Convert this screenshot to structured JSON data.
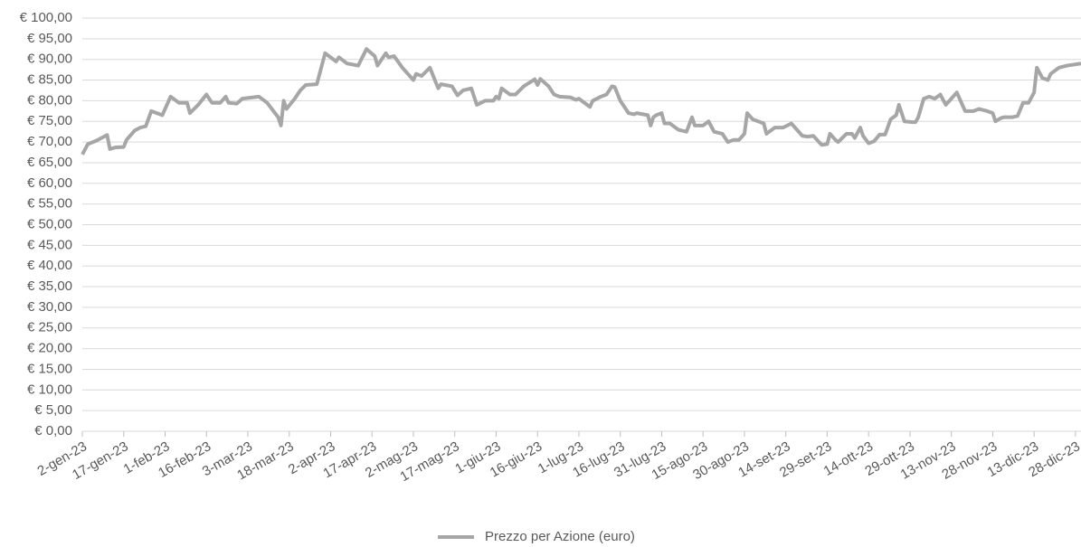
{
  "chart_data": {
    "type": "line",
    "x": [
      "2023-01-02",
      "2023-01-04",
      "2023-01-07",
      "2023-01-09",
      "2023-01-11",
      "2023-01-12",
      "2023-01-14",
      "2023-01-17",
      "2023-01-18",
      "2023-01-21",
      "2023-01-23",
      "2023-01-25",
      "2023-01-27",
      "2023-01-31",
      "2023-02-03",
      "2023-02-06",
      "2023-02-09",
      "2023-02-10",
      "2023-02-13",
      "2023-02-16",
      "2023-02-18",
      "2023-02-21",
      "2023-02-23",
      "2023-02-24",
      "2023-02-27",
      "2023-03-01",
      "2023-03-07",
      "2023-03-10",
      "2023-03-14",
      "2023-03-15",
      "2023-03-16",
      "2023-03-17",
      "2023-03-20",
      "2023-03-22",
      "2023-03-24",
      "2023-03-28",
      "2023-03-31",
      "2023-04-02",
      "2023-04-04",
      "2023-04-05",
      "2023-04-08",
      "2023-04-12",
      "2023-04-15",
      "2023-04-18",
      "2023-04-19",
      "2023-04-22",
      "2023-04-23",
      "2023-04-25",
      "2023-04-28",
      "2023-05-02",
      "2023-05-03",
      "2023-05-05",
      "2023-05-08",
      "2023-05-11",
      "2023-05-12",
      "2023-05-16",
      "2023-05-18",
      "2023-05-20",
      "2023-05-23",
      "2023-05-25",
      "2023-05-28",
      "2023-05-31",
      "2023-06-01",
      "2023-06-02",
      "2023-06-03",
      "2023-06-06",
      "2023-06-08",
      "2023-06-11",
      "2023-06-15",
      "2023-06-16",
      "2023-06-17",
      "2023-06-20",
      "2023-06-22",
      "2023-06-24",
      "2023-06-28",
      "2023-06-30",
      "2023-07-01",
      "2023-07-05",
      "2023-07-06",
      "2023-07-09",
      "2023-07-11",
      "2023-07-13",
      "2023-07-14",
      "2023-07-16",
      "2023-07-19",
      "2023-07-21",
      "2023-07-22",
      "2023-07-26",
      "2023-07-27",
      "2023-07-28",
      "2023-07-29",
      "2023-07-31",
      "2023-08-01",
      "2023-08-03",
      "2023-08-06",
      "2023-08-09",
      "2023-08-11",
      "2023-08-12",
      "2023-08-15",
      "2023-08-17",
      "2023-08-19",
      "2023-08-22",
      "2023-08-24",
      "2023-08-26",
      "2023-08-28",
      "2023-08-30",
      "2023-08-31",
      "2023-09-02",
      "2023-09-06",
      "2023-09-07",
      "2023-09-10",
      "2023-09-13",
      "2023-09-16",
      "2023-09-20",
      "2023-09-22",
      "2023-09-24",
      "2023-09-26",
      "2023-09-27",
      "2023-09-29",
      "2023-09-30",
      "2023-10-02",
      "2023-10-03",
      "2023-10-06",
      "2023-10-08",
      "2023-10-09",
      "2023-10-11",
      "2023-10-12",
      "2023-10-14",
      "2023-10-16",
      "2023-10-18",
      "2023-10-20",
      "2023-10-22",
      "2023-10-24",
      "2023-10-25",
      "2023-10-27",
      "2023-10-30",
      "2023-10-31",
      "2023-11-01",
      "2023-11-03",
      "2023-11-05",
      "2023-11-07",
      "2023-11-09",
      "2023-11-11",
      "2023-11-13",
      "2023-11-15",
      "2023-11-18",
      "2023-11-21",
      "2023-11-23",
      "2023-11-26",
      "2023-11-28",
      "2023-11-29",
      "2023-12-01",
      "2023-12-02",
      "2023-12-05",
      "2023-12-07",
      "2023-12-09",
      "2023-12-11",
      "2023-12-13",
      "2023-12-14",
      "2023-12-16",
      "2023-12-18",
      "2023-12-19",
      "2023-12-22",
      "2023-12-25",
      "2023-12-30"
    ],
    "series": [
      {
        "name": "Prezzo per Azione (euro)",
        "color": "#a6a6a6",
        "values": [
          67,
          69.5,
          70.3,
          71,
          71.7,
          68.3,
          68.7,
          68.8,
          70.5,
          72.8,
          73.5,
          73.8,
          77.5,
          76.5,
          81,
          79.5,
          79.5,
          77,
          79,
          81.5,
          79.5,
          79.5,
          81,
          79.5,
          79.3,
          80.5,
          81,
          79.5,
          76,
          74,
          80,
          78,
          80.5,
          82.5,
          83.8,
          84,
          91.5,
          90.5,
          89.5,
          90.5,
          89,
          88.5,
          92.5,
          90.8,
          88.5,
          91.5,
          90.5,
          90.8,
          88,
          85,
          86.5,
          86,
          88,
          83,
          84,
          83.5,
          81.3,
          82.5,
          83,
          79,
          80,
          80,
          81,
          80.5,
          83,
          81.5,
          81.5,
          83.5,
          85.2,
          83.8,
          85.3,
          83.5,
          81.5,
          81,
          80.8,
          80.2,
          80.5,
          78.5,
          80,
          81,
          81.5,
          83.5,
          83.3,
          80,
          77,
          76.7,
          77,
          76.5,
          74,
          76,
          76.5,
          77,
          74.5,
          74.5,
          73,
          72.5,
          76,
          74,
          74,
          75,
          72.5,
          72,
          70,
          70.5,
          70.5,
          72,
          77,
          75.5,
          74.5,
          72,
          73.5,
          73.5,
          74.5,
          71.5,
          71.3,
          71.5,
          70,
          69.3,
          69.5,
          72,
          70.5,
          70,
          72,
          72,
          71,
          73.5,
          71.5,
          69.7,
          70.2,
          71.8,
          71.8,
          75.5,
          76.5,
          79,
          75,
          74.8,
          74.8,
          76,
          80.5,
          81,
          80.5,
          81.5,
          79,
          80.5,
          82,
          77.5,
          77.5,
          78,
          77.5,
          77,
          75,
          75.8,
          76,
          76,
          76.3,
          79.5,
          79.5,
          82,
          88,
          85.5,
          85,
          86.5,
          88,
          88.5,
          89
        ]
      }
    ],
    "xlim": [
      "2023-01-02",
      "2023-12-30"
    ],
    "xticks": [
      {
        "value": "2023-01-02",
        "label": "2-gen-23"
      },
      {
        "value": "2023-01-17",
        "label": "17-gen-23"
      },
      {
        "value": "2023-02-01",
        "label": "1-feb-23"
      },
      {
        "value": "2023-02-16",
        "label": "16-feb-23"
      },
      {
        "value": "2023-03-03",
        "label": "3-mar-23"
      },
      {
        "value": "2023-03-18",
        "label": "18-mar-23"
      },
      {
        "value": "2023-04-02",
        "label": "2-apr-23"
      },
      {
        "value": "2023-04-17",
        "label": "17-apr-23"
      },
      {
        "value": "2023-05-02",
        "label": "2-mag-23"
      },
      {
        "value": "2023-05-17",
        "label": "17-mag-23"
      },
      {
        "value": "2023-06-01",
        "label": "1-giu-23"
      },
      {
        "value": "2023-06-16",
        "label": "16-giu-23"
      },
      {
        "value": "2023-07-01",
        "label": "1-lug-23"
      },
      {
        "value": "2023-07-16",
        "label": "16-lug-23"
      },
      {
        "value": "2023-07-31",
        "label": "31-lug-23"
      },
      {
        "value": "2023-08-15",
        "label": "15-ago-23"
      },
      {
        "value": "2023-08-30",
        "label": "30-ago-23"
      },
      {
        "value": "2023-09-14",
        "label": "14-set-23"
      },
      {
        "value": "2023-09-29",
        "label": "29-set-23"
      },
      {
        "value": "2023-10-14",
        "label": "14-ott-23"
      },
      {
        "value": "2023-10-29",
        "label": "29-ott-23"
      },
      {
        "value": "2023-11-13",
        "label": "13-nov-23"
      },
      {
        "value": "2023-11-28",
        "label": "28-nov-23"
      },
      {
        "value": "2023-12-13",
        "label": "13-dic-23"
      },
      {
        "value": "2023-12-28",
        "label": "28-dic-23"
      }
    ],
    "ylim": [
      0,
      100
    ],
    "yticks": [
      {
        "value": 0,
        "label": "€ 0,00"
      },
      {
        "value": 5,
        "label": "€ 5,00"
      },
      {
        "value": 10,
        "label": "€ 10,00"
      },
      {
        "value": 15,
        "label": "€ 15,00"
      },
      {
        "value": 20,
        "label": "€ 20,00"
      },
      {
        "value": 25,
        "label": "€ 25,00"
      },
      {
        "value": 30,
        "label": "€ 30,00"
      },
      {
        "value": 35,
        "label": "€ 35,00"
      },
      {
        "value": 40,
        "label": "€ 40,00"
      },
      {
        "value": 45,
        "label": "€ 45,00"
      },
      {
        "value": 50,
        "label": "€ 50,00"
      },
      {
        "value": 55,
        "label": "€ 55,00"
      },
      {
        "value": 60,
        "label": "€ 60,00"
      },
      {
        "value": 65,
        "label": "€ 65,00"
      },
      {
        "value": 70,
        "label": "€ 70,00"
      },
      {
        "value": 75,
        "label": "€ 75,00"
      },
      {
        "value": 80,
        "label": "€ 80,00"
      },
      {
        "value": 85,
        "label": "€ 85,00"
      },
      {
        "value": 90,
        "label": "€ 90,00"
      },
      {
        "value": 95,
        "label": "€ 95,00"
      },
      {
        "value": 100,
        "label": "€ 100,00"
      }
    ],
    "grid": true,
    "legend": "bottom"
  }
}
